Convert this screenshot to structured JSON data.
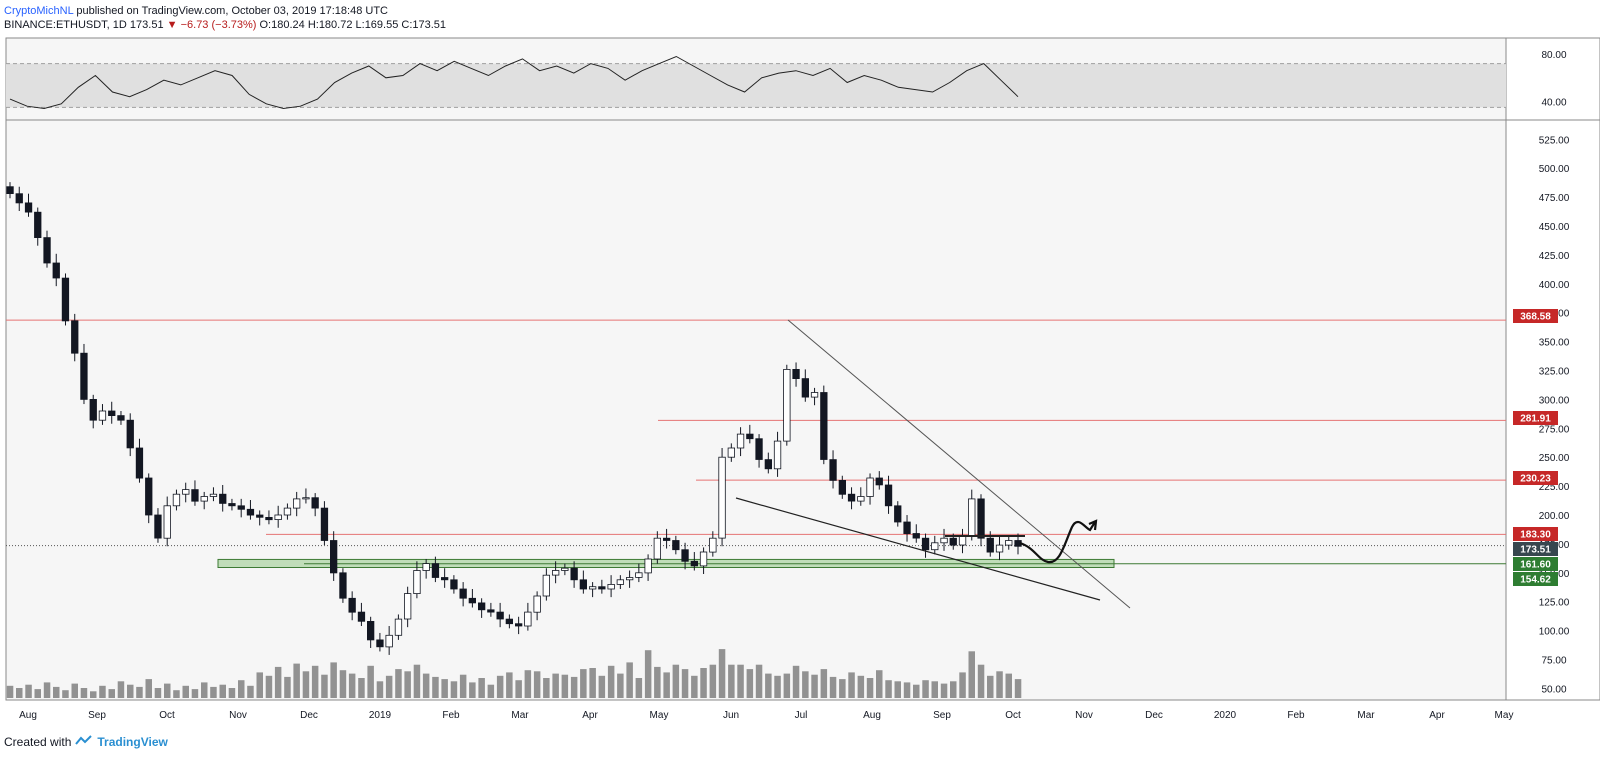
{
  "header": {
    "author": "CryptoMichNL",
    "published": "published on TradingView.com, October 03, 2019 17:18:48 UTC",
    "symbol": "BINANCE:ETHUSDT, 1D",
    "last": "173.51",
    "change": "−6.73 (−3.73%)",
    "ohlc": "O:180.24 H:180.72 L:169.55 C:173.51"
  },
  "footer": {
    "created_with": "Created with",
    "brand": "TradingView"
  },
  "colors": {
    "up": "#ffffff",
    "down": "#131722",
    "resistance": "#e57373",
    "zone": "#7fbf6f",
    "label_red": "#c62828",
    "label_dark": "#37474f",
    "label_green": "#2e7d32",
    "rsi_band": "#e0e0e0",
    "volume": "#808080"
  },
  "chart_data": [
    {
      "type": "line",
      "title": "",
      "series": [
        {
          "values": [
            42,
            36,
            34,
            38,
            52,
            62,
            48,
            44,
            50,
            58,
            54,
            60,
            66,
            62,
            46,
            38,
            34,
            36,
            42,
            56,
            64,
            70,
            60,
            62,
            72,
            66,
            74,
            68,
            62,
            70,
            76,
            66,
            70,
            64,
            72,
            68,
            58,
            66,
            72,
            78,
            70,
            62,
            54,
            48,
            60,
            64,
            66,
            62,
            68,
            56,
            62,
            58,
            52,
            50,
            48,
            56,
            66,
            72,
            58,
            44
          ]
        }
      ],
      "ylim": [
        26,
        92
      ],
      "y_ticks": [
        40,
        80
      ],
      "band": [
        35,
        72
      ],
      "grid": false
    },
    {
      "type": "candlestick",
      "title": "",
      "x_ticks": [
        "Aug",
        "Sep",
        "Oct",
        "Nov",
        "Dec",
        "2019",
        "Feb",
        "Mar",
        "Apr",
        "May",
        "Jun",
        "Jul",
        "Aug",
        "Sep",
        "Oct",
        "Nov",
        "Dec",
        "2020",
        "Feb",
        "Mar",
        "Apr",
        "May"
      ],
      "y_ticks": [
        50,
        75,
        100,
        125,
        150,
        175,
        200,
        225,
        250,
        275,
        300,
        325,
        350,
        375,
        400,
        425,
        450,
        475,
        500,
        525
      ],
      "ylim": [
        40,
        540
      ],
      "close": [
        478,
        470,
        462,
        440,
        418,
        405,
        368,
        340,
        300,
        282,
        290,
        286,
        282,
        258,
        232,
        200,
        180,
        208,
        218,
        222,
        212,
        216,
        218,
        210,
        208,
        205,
        200,
        198,
        196,
        200,
        206,
        214,
        215,
        206,
        178,
        150,
        128,
        116,
        108,
        92,
        86,
        96,
        110,
        132,
        152,
        158,
        146,
        144,
        136,
        128,
        124,
        118,
        116,
        110,
        106,
        104,
        116,
        130,
        148,
        152,
        154,
        144,
        136,
        138,
        136,
        140,
        144,
        146,
        150,
        162,
        180,
        178,
        170,
        160,
        156,
        168,
        180,
        250,
        258,
        270,
        266,
        248,
        240,
        264,
        326,
        318,
        302,
        306,
        248,
        230,
        218,
        212,
        216,
        232,
        226,
        208,
        194,
        184,
        180,
        170,
        176,
        180,
        174,
        182,
        214,
        180,
        168,
        174,
        178,
        173
      ],
      "price_labels": [
        {
          "value": 368.58,
          "text": "368.58",
          "style": "red"
        },
        {
          "value": 281.91,
          "text": "281.91",
          "style": "red"
        },
        {
          "value": 230.23,
          "text": "230.23",
          "style": "red"
        },
        {
          "value": 183.3,
          "text": "183.30",
          "style": "red"
        },
        {
          "value": 173.51,
          "text": "173.51",
          "style": "dark"
        },
        {
          "value": 161.6,
          "text": "161.60",
          "style": "green"
        },
        {
          "value": 154.62,
          "text": "154.62",
          "style": "green"
        }
      ],
      "horizontal_levels": [
        368.58,
        281.91,
        230.23,
        183.3
      ],
      "support_zone": [
        154.62,
        161.6
      ],
      "volume": [
        22,
        18,
        24,
        16,
        28,
        20,
        14,
        26,
        18,
        12,
        22,
        16,
        30,
        24,
        20,
        34,
        18,
        26,
        14,
        22,
        16,
        28,
        20,
        24,
        18,
        32,
        22,
        46,
        40,
        56,
        38,
        62,
        48,
        58,
        42,
        64,
        50,
        44,
        36,
        58,
        30,
        40,
        52,
        48,
        60,
        44,
        38,
        34,
        30,
        42,
        28,
        36,
        24,
        40,
        46,
        32,
        50,
        48,
        36,
        44,
        42,
        38,
        52,
        54,
        40,
        58,
        44,
        64,
        36,
        86,
        56,
        46,
        60,
        52,
        40,
        54,
        60,
        88,
        60,
        60,
        52,
        60,
        44,
        40,
        44,
        58,
        48,
        42,
        52,
        38,
        34,
        46,
        40,
        36,
        50,
        32,
        30,
        28,
        24,
        32,
        30,
        26,
        30,
        46,
        84,
        60,
        40,
        48,
        44,
        34
      ],
      "volume_max": 180
    }
  ]
}
